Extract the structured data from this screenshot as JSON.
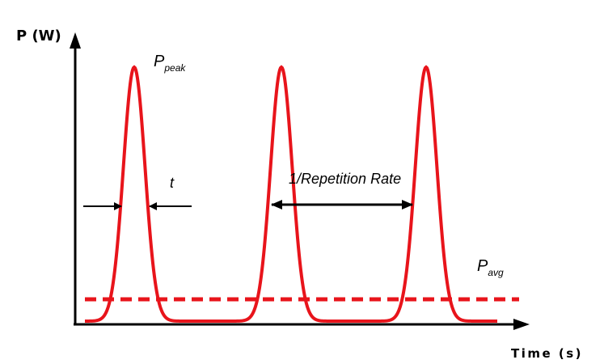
{
  "axes": {
    "y_label": "P (W)",
    "x_label": "Time (s)"
  },
  "labels": {
    "peak": {
      "symbol": "P",
      "subscript": "peak"
    },
    "pulse_width": "t",
    "period": "1/Repetition Rate",
    "average": {
      "symbol": "P",
      "subscript": "avg"
    }
  }
}
